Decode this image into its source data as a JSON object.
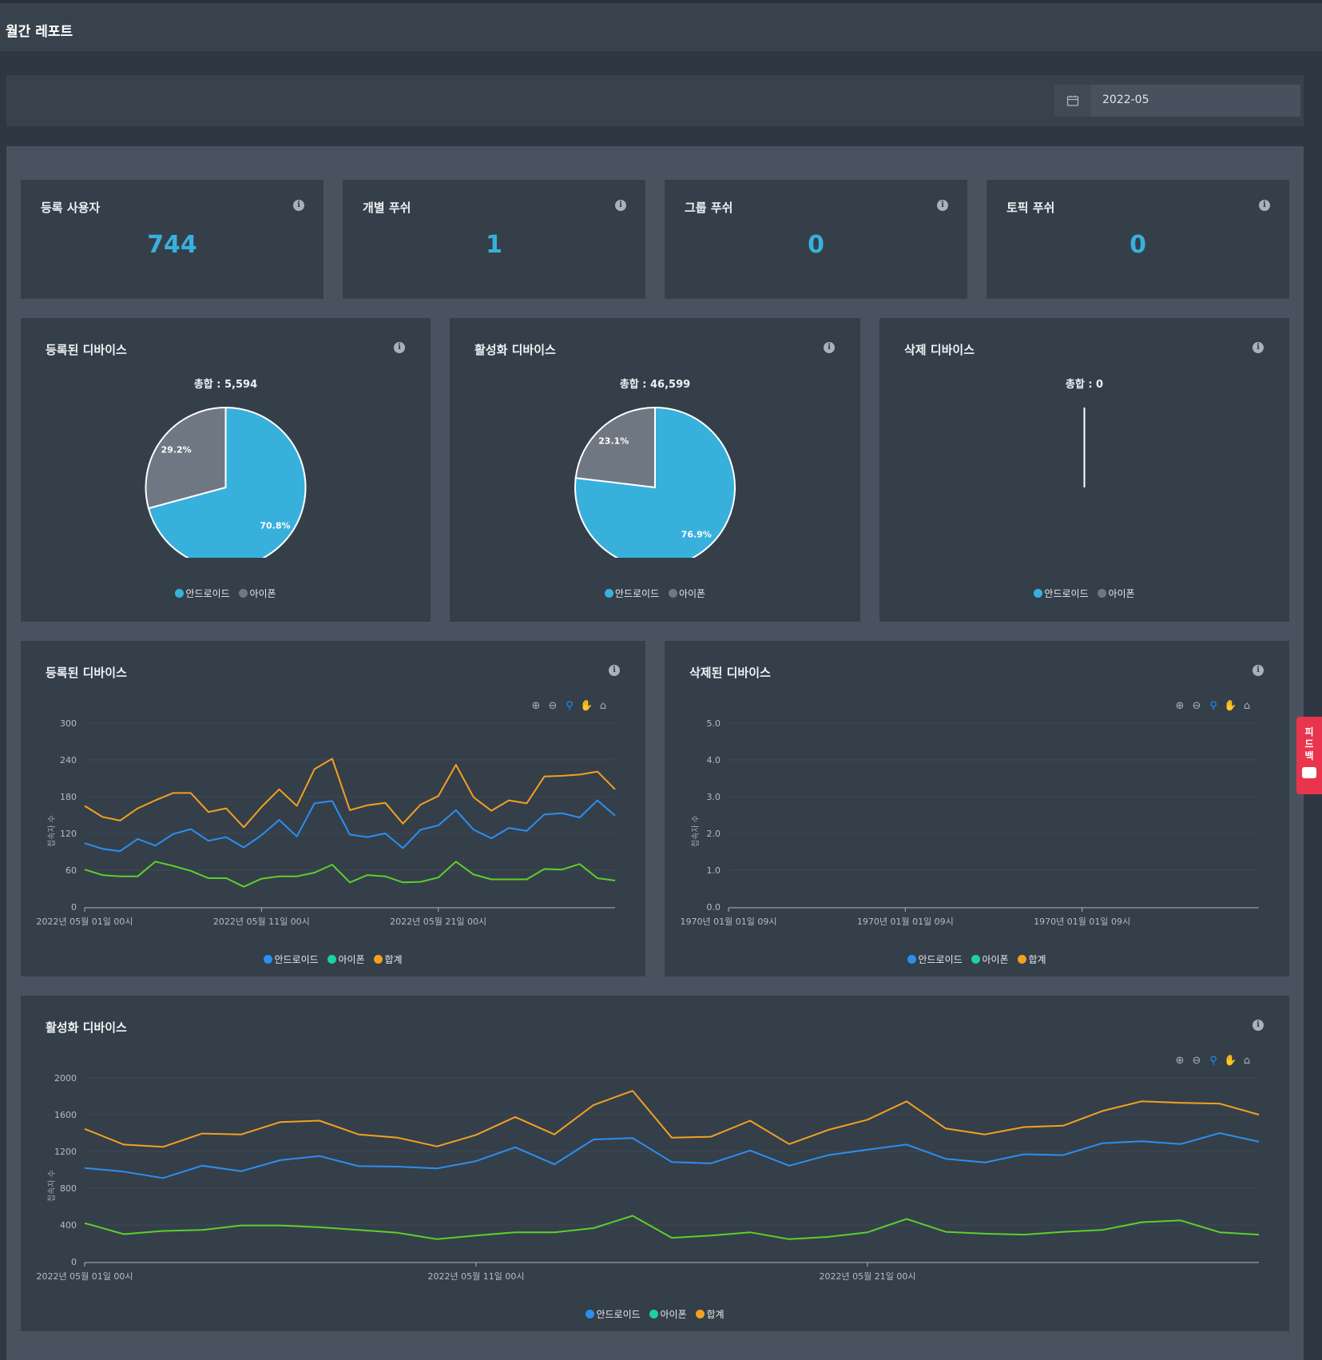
{
  "header": {
    "title": "월간 레포트"
  },
  "filter": {
    "date_value": "2022-05"
  },
  "stats": [
    {
      "label": "등록 사용자",
      "value": "744"
    },
    {
      "label": "개별 푸쉬",
      "value": "1"
    },
    {
      "label": "그룹 푸쉬",
      "value": "0"
    },
    {
      "label": "토픽 푸쉬",
      "value": "0"
    }
  ],
  "legend": {
    "android": "안드로이드",
    "iphone": "아이폰",
    "total": "합계"
  },
  "colors": {
    "pie_android": "#38b0dc",
    "pie_iphone": "#6f7782",
    "line_android": "#2b8ff0",
    "line_iphone": "#5ecf2a",
    "line_total": "#f2a11f",
    "legend_iphone_line": "#1ed29a",
    "accent": "#38b0dc"
  },
  "pies": [
    {
      "title": "등록된 디바이스",
      "total_label": "총합 : 5,594",
      "android_pct": 70.8,
      "iphone_pct": 29.2,
      "android_label": "70.8%",
      "iphone_label": "29.2%"
    },
    {
      "title": "활성화 디바이스",
      "total_label": "총합 : 46,599",
      "android_pct": 76.9,
      "iphone_pct": 23.1,
      "android_label": "76.9%",
      "iphone_label": "23.1%"
    },
    {
      "title": "삭제 디바이스",
      "total_label": "총합 : 0",
      "android_pct": 0,
      "iphone_pct": 0,
      "android_label": "",
      "iphone_label": ""
    }
  ],
  "line_charts": {
    "registered": {
      "title": "등록된 디바이스"
    },
    "deleted": {
      "title": "삭제된 디바이스"
    },
    "active": {
      "title": "활성화 디바이스"
    }
  },
  "feedback": {
    "label": "피드백"
  },
  "chart_data": [
    {
      "type": "line",
      "title": "등록된 디바이스",
      "ylabel": "접속자 수",
      "ylim": [
        0,
        300
      ],
      "yticks": [
        "0",
        "60",
        "120",
        "180",
        "240",
        "300"
      ],
      "xtick_labels": [
        "2022년 05월 01일 00시",
        "2022년 05월 11일 00시",
        "2022년 05월 21일 00시"
      ],
      "x_start": "2022-05-01",
      "x_end": "2022-05-31",
      "grid": true,
      "legend_position": "bottom",
      "series": [
        {
          "name": "안드로이드",
          "values": [
            104,
            95,
            91,
            111,
            100,
            119,
            127,
            108,
            114,
            97,
            117,
            142,
            115,
            169,
            173,
            118,
            114,
            120,
            96,
            126,
            133,
            158,
            126,
            112,
            129,
            124,
            151,
            153,
            146,
            174,
            149
          ]
        },
        {
          "name": "아이폰",
          "values": [
            61,
            52,
            50,
            50,
            74,
            67,
            59,
            47,
            47,
            33,
            46,
            50,
            50,
            56,
            69,
            40,
            52,
            50,
            40,
            41,
            48,
            74,
            53,
            45,
            45,
            45,
            62,
            61,
            70,
            47,
            43
          ]
        },
        {
          "name": "합계",
          "values": [
            165,
            147,
            141,
            161,
            174,
            186,
            186,
            155,
            161,
            130,
            163,
            192,
            165,
            225,
            242,
            158,
            166,
            170,
            136,
            167,
            181,
            232,
            179,
            157,
            174,
            169,
            213,
            214,
            216,
            221,
            192
          ]
        }
      ]
    },
    {
      "type": "line",
      "title": "삭제된 디바이스",
      "ylabel": "접속자 수",
      "ylim": [
        0,
        5
      ],
      "yticks": [
        "0.0",
        "1.0",
        "2.0",
        "3.0",
        "4.0",
        "5.0"
      ],
      "xtick_labels": [
        "1970년 01월 01일 09시",
        "1970년 01월 01일 09시",
        "1970년 01월 01일 09시"
      ],
      "grid": true,
      "legend_position": "bottom",
      "series": [
        {
          "name": "안드로이드",
          "values": []
        },
        {
          "name": "아이폰",
          "values": []
        },
        {
          "name": "합계",
          "values": []
        }
      ]
    },
    {
      "type": "line",
      "title": "활성화 디바이스",
      "ylabel": "접속자 수",
      "ylim": [
        0,
        2000
      ],
      "yticks": [
        "0",
        "400",
        "800",
        "1200",
        "1600",
        "2000"
      ],
      "xtick_labels": [
        "2022년 05월 01일 00시",
        "2022년 05월 11일 00시",
        "2022년 05월 21일 00시"
      ],
      "x_start": "2022-05-01",
      "x_end": "2022-05-31",
      "grid": true,
      "legend_position": "bottom",
      "series": [
        {
          "name": "안드로이드",
          "values": [
            1020,
            980,
            910,
            1045,
            985,
            1105,
            1150,
            1040,
            1035,
            1015,
            1095,
            1245,
            1060,
            1330,
            1345,
            1085,
            1070,
            1210,
            1045,
            1160,
            1220,
            1275,
            1120,
            1080,
            1170,
            1160,
            1290,
            1310,
            1280,
            1400,
            1305
          ]
        },
        {
          "name": "아이폰",
          "values": [
            420,
            300,
            335,
            345,
            395,
            395,
            375,
            345,
            315,
            245,
            285,
            320,
            320,
            365,
            500,
            260,
            285,
            320,
            245,
            270,
            320,
            465,
            325,
            305,
            295,
            325,
            345,
            430,
            450,
            320,
            295
          ]
        },
        {
          "name": "합계",
          "values": [
            1445,
            1275,
            1250,
            1395,
            1385,
            1520,
            1535,
            1385,
            1350,
            1255,
            1380,
            1575,
            1385,
            1705,
            1860,
            1350,
            1360,
            1535,
            1280,
            1435,
            1545,
            1745,
            1450,
            1385,
            1465,
            1480,
            1640,
            1745,
            1730,
            1720,
            1600
          ]
        }
      ]
    }
  ]
}
